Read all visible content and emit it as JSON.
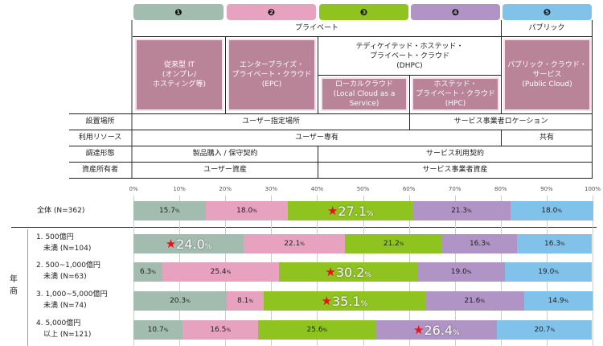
{
  "columns": [
    {
      "num": "❶",
      "color": "#a2bdb0"
    },
    {
      "num": "❷",
      "color": "#e6a2bf"
    },
    {
      "num": "❸",
      "color": "#8fc31f"
    },
    {
      "num": "❹",
      "color": "#b094c5"
    },
    {
      "num": "❺",
      "color": "#80c2ea"
    }
  ],
  "table": {
    "private": "プライベート",
    "public": "パブリック",
    "dhpc": "テディケイテッド・ホステッド・\nプライベート・クラウド\n(DHPC)",
    "boxes": [
      "従来型 IT\n(オンプレ/\nホスティング等)",
      "エンタープライズ・\nプライベート・クラウド\n(EPC)",
      "ローカルクラウド\n(Local Cloud as a\nService)",
      "ホステッド・\nプライベート・クラウド\n(HPC)",
      "パブリック・クラウド・\nサービス\n(Public Cloud)"
    ],
    "rows": [
      {
        "label": "設置場所",
        "cells": [
          "ユーザー指定場所",
          "サービス事業者ロケーション"
        ]
      },
      {
        "label": "利用リソース",
        "cells": [
          "ユーザー専有",
          "共有"
        ]
      },
      {
        "label": "調達形態",
        "cells": [
          "製品購入 / 保守契約",
          "サービス利用契約"
        ]
      },
      {
        "label": "資産所有者",
        "cells": [
          "ユーザー資産",
          "サービス事業者資産"
        ]
      }
    ]
  },
  "chart_data": {
    "type": "bar",
    "stacked": true,
    "orientation": "horizontal",
    "xlim": [
      0,
      100
    ],
    "ticks": [
      "0%",
      "10%",
      "20%",
      "30%",
      "40%",
      "50%",
      "60%",
      "70%",
      "80%",
      "90%",
      "100%"
    ],
    "group_label": "年商",
    "highlight_marker": "★",
    "categories": [
      "全体 (N=362)",
      "1. 500億円\n未満 (N=104)",
      "2. 500~1,000億円\n未満 (N=63)",
      "3. 1,000~5,000億円\n未満 (N=74)",
      "4. 5,000億円\n以上 (N=121)"
    ],
    "series": [
      {
        "key": "❶",
        "values": [
          15.7,
          24.0,
          6.3,
          20.3,
          10.7
        ]
      },
      {
        "key": "❷",
        "values": [
          18.0,
          22.1,
          25.4,
          8.1,
          16.5
        ]
      },
      {
        "key": "❸",
        "values": [
          27.1,
          21.2,
          30.2,
          35.1,
          25.6
        ]
      },
      {
        "key": "❹",
        "values": [
          21.3,
          16.3,
          19.0,
          21.6,
          26.4
        ]
      },
      {
        "key": "❺",
        "values": [
          18.0,
          16.3,
          19.0,
          14.9,
          20.7
        ]
      }
    ],
    "highlighted": [
      [
        0,
        2
      ],
      [
        1,
        0
      ],
      [
        2,
        2
      ],
      [
        3,
        2
      ],
      [
        4,
        3
      ]
    ],
    "unit": "%"
  }
}
